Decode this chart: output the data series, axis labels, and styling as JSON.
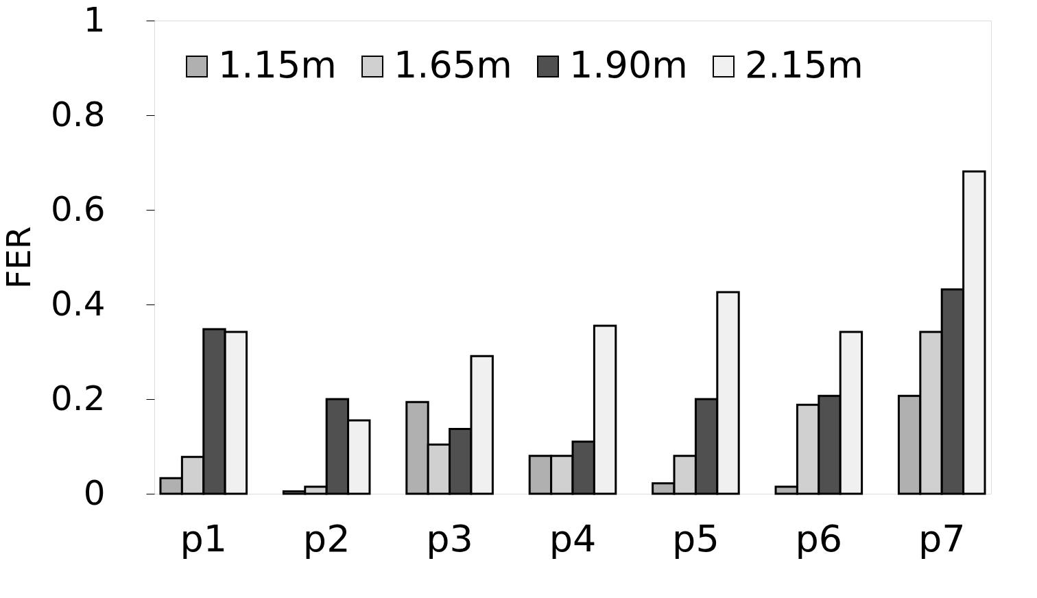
{
  "chart_data": {
    "type": "bar",
    "ylabel": "FER",
    "categories": [
      "p1",
      "p2",
      "p3",
      "p4",
      "p5",
      "p6",
      "p7"
    ],
    "series": [
      {
        "name": "1.15m",
        "color": "#b0b0b0",
        "values": [
          0.033,
          0.005,
          0.194,
          0.08,
          0.022,
          0.015,
          0.207
        ]
      },
      {
        "name": "1.65m",
        "color": "#d0d0d0",
        "values": [
          0.078,
          0.015,
          0.104,
          0.08,
          0.08,
          0.188,
          0.342
        ]
      },
      {
        "name": "1.90m",
        "color": "#505050",
        "values": [
          0.348,
          0.2,
          0.137,
          0.11,
          0.2,
          0.207,
          0.432
        ]
      },
      {
        "name": "2.15m",
        "color": "#f0f0f0",
        "values": [
          0.342,
          0.155,
          0.291,
          0.355,
          0.426,
          0.342,
          0.681
        ]
      }
    ],
    "ylim": [
      0,
      1
    ],
    "yticks": [
      0,
      0.2,
      0.4,
      0.6,
      0.8,
      1
    ],
    "grid": false,
    "legend": "top"
  }
}
